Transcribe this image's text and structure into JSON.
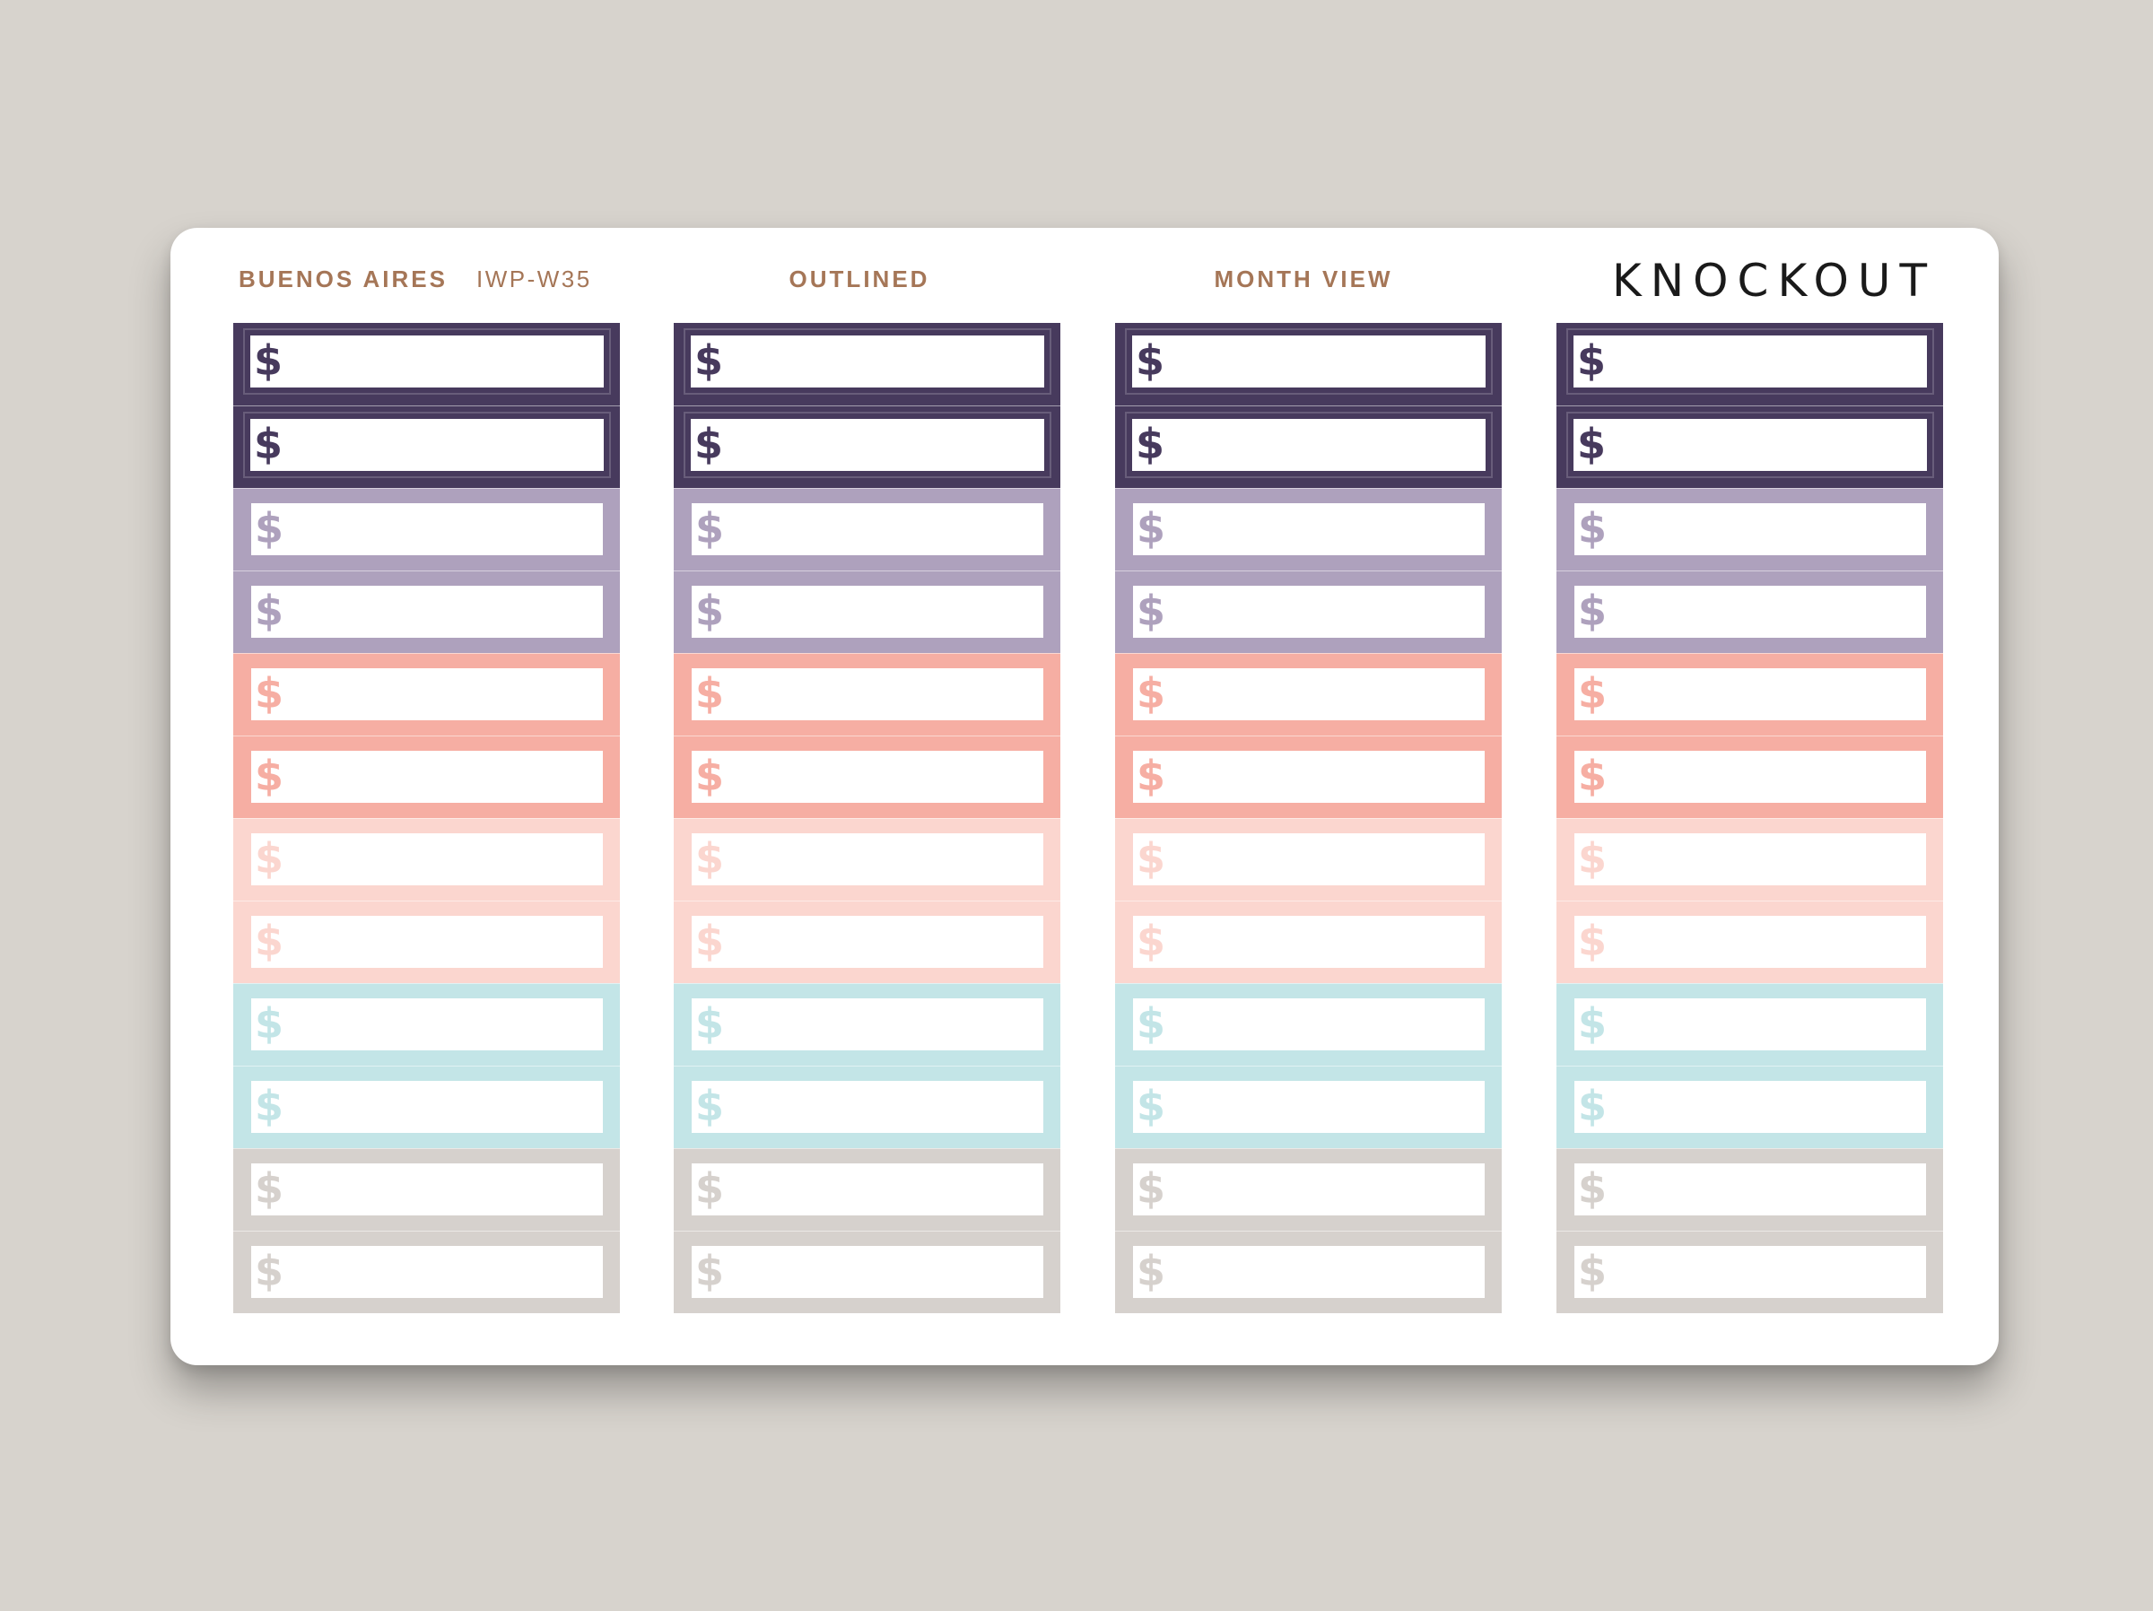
{
  "header": {
    "collection": "BUENOS AIRES",
    "code": "IWP-W35",
    "style": "OUTLINED",
    "view": "MONTH VIEW",
    "brand": "KNOCKOUT"
  },
  "sticker_symbol": "$",
  "rows": [
    {
      "frame": "#473a5d",
      "symbol": "#473a5d"
    },
    {
      "frame": "#473a5d",
      "symbol": "#473a5d"
    },
    {
      "frame": "#aea1bd",
      "symbol": "#aea1bd"
    },
    {
      "frame": "#aea1bd",
      "symbol": "#aea1bd"
    },
    {
      "frame": "#f6aea3",
      "symbol": "#f6aea3"
    },
    {
      "frame": "#f6aea3",
      "symbol": "#f6aea3"
    },
    {
      "frame": "#fbd6cf",
      "symbol": "#fbd6cf"
    },
    {
      "frame": "#fbd6cf",
      "symbol": "#fbd6cf"
    },
    {
      "frame": "#c3e5e7",
      "symbol": "#c3e5e7"
    },
    {
      "frame": "#c3e5e7",
      "symbol": "#c3e5e7"
    },
    {
      "frame": "#d6d1cd",
      "symbol": "#d6d1cd"
    },
    {
      "frame": "#d6d1cd",
      "symbol": "#d6d1cd"
    }
  ],
  "columns": [
    "column-1",
    "column-2",
    "column-3",
    "column-4"
  ]
}
